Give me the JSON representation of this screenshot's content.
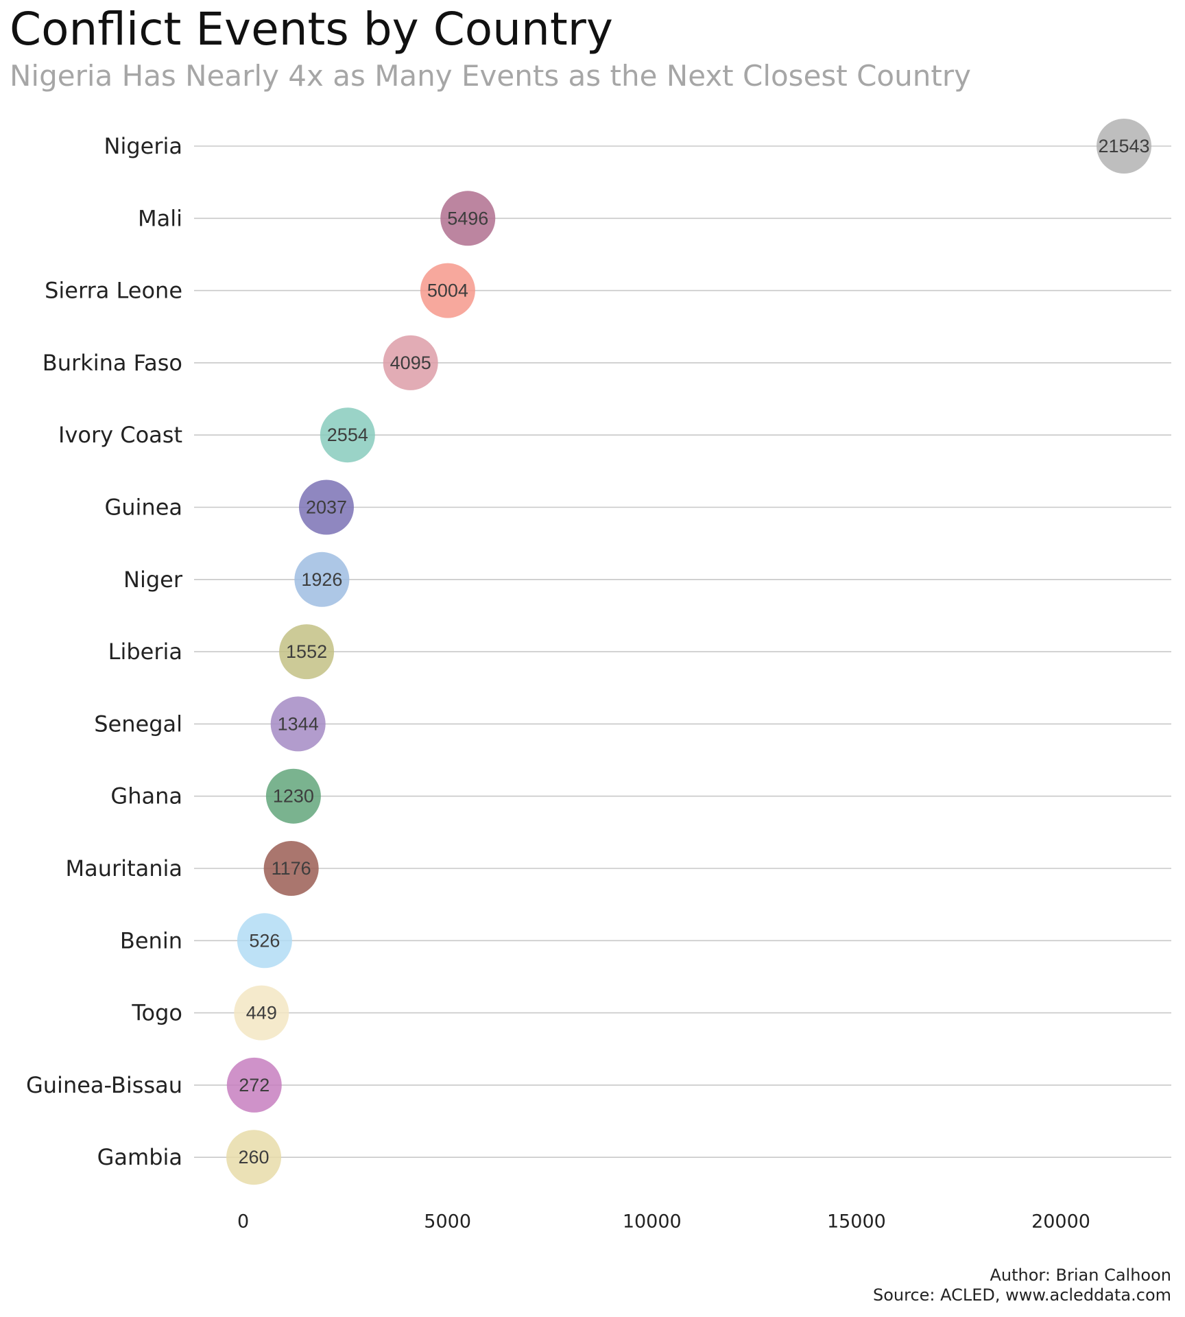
{
  "chart_data": {
    "type": "scatter",
    "title": "Conflict Events by Country",
    "subtitle": "Nigeria Has Nearly 4x as Many Events as the Next Closest Country",
    "categories": [
      "Nigeria",
      "Mali",
      "Sierra Leone",
      "Burkina Faso",
      "Ivory Coast",
      "Guinea",
      "Niger",
      "Liberia",
      "Senegal",
      "Ghana",
      "Mauritania",
      "Benin",
      "Togo",
      "Guinea-Bissau",
      "Gambia"
    ],
    "values": [
      21543,
      5496,
      5004,
      4095,
      2554,
      2037,
      1926,
      1552,
      1344,
      1230,
      1176,
      526,
      449,
      272,
      260
    ],
    "data_labels": [
      "21543",
      "5496",
      "5004",
      "4095",
      "2554",
      "2037",
      "1926",
      "1552",
      "1344",
      "1230",
      "1176",
      "526",
      "449",
      "272",
      "260"
    ],
    "colors": [
      "#b3b3b3",
      "#b0708f",
      "#f6998c",
      "#dd9ea8",
      "#88cbbd",
      "#7b72b5",
      "#9fbde2",
      "#c3c185",
      "#a58bc4",
      "#63a67b",
      "#9b5e55",
      "#b2dcf4",
      "#f3e6c3",
      "#c77fbf",
      "#e8dca9"
    ],
    "x_ticks": [
      0,
      5000,
      10000,
      15000,
      20000
    ],
    "x_tick_labels": [
      "0",
      "5000",
      "10000",
      "15000",
      "20000"
    ],
    "xlim": [
      -1200,
      22700
    ],
    "xlabel": "",
    "ylabel": "",
    "grid": "horizontal",
    "legend": "none"
  },
  "caption": {
    "author": "Author: Brian Calhoon",
    "source": "Source: ACLED, www.acleddata.com"
  }
}
